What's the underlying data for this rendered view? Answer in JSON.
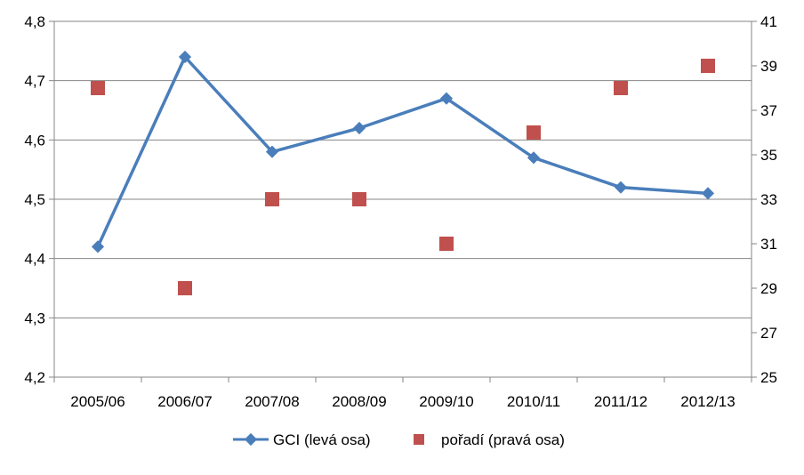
{
  "chart_data": {
    "type": "line",
    "categories": [
      "2005/06",
      "2006/07",
      "2007/08",
      "2008/09",
      "2009/10",
      "2010/11",
      "2011/12",
      "2012/13"
    ],
    "y_left": {
      "min": 4.2,
      "max": 4.8,
      "step": 0.1,
      "tick_labels": [
        "4,2",
        "4,3",
        "4,4",
        "4,5",
        "4,6",
        "4,7",
        "4,8"
      ]
    },
    "y_right": {
      "min": 25,
      "max": 41,
      "step": 2,
      "tick_labels": [
        "25",
        "27",
        "29",
        "31",
        "33",
        "35",
        "37",
        "39",
        "41"
      ]
    },
    "grid": true,
    "legend_position": "bottom",
    "series": [
      {
        "name": "GCI (levá osa)",
        "axis": "left",
        "type": "line",
        "marker": "diamond",
        "color": "#4A7EBB",
        "values": [
          4.42,
          4.74,
          4.58,
          4.62,
          4.67,
          4.57,
          4.52,
          4.51
        ]
      },
      {
        "name": "pořadí (pravá osa)",
        "axis": "right",
        "type": "scatter",
        "marker": "square",
        "color": "#C0504D",
        "values": [
          38,
          29,
          33,
          33,
          31,
          36,
          38,
          39
        ]
      }
    ]
  }
}
